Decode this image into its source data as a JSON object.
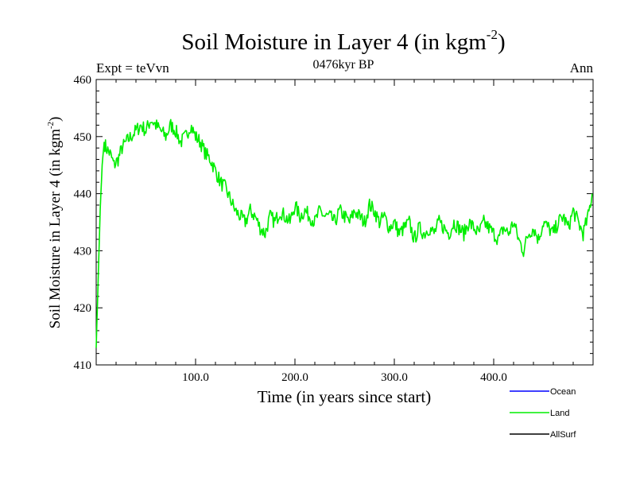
{
  "chart_data": {
    "type": "line",
    "title": "Soil Moisture in Layer 4 (in kgm",
    "title_superscript": "-2",
    "title_close": ")",
    "subtitle_left": "Expt = teVvn",
    "subtitle_center": "0476kyr BP",
    "subtitle_right": "Ann",
    "xlabel": "Time (in years since start)",
    "ylabel": "Soil Moisture in Layer 4 (in kgm",
    "ylabel_superscript": "-2",
    "ylabel_close": ")",
    "xlim": [
      0,
      500
    ],
    "ylim": [
      410,
      460
    ],
    "x_ticks": [
      100,
      200,
      300,
      400
    ],
    "x_tick_labels": [
      "100.0",
      "200.0",
      "300.0",
      "400.0"
    ],
    "y_ticks": [
      410,
      420,
      430,
      440,
      450,
      460
    ],
    "y_tick_labels": [
      "410",
      "420",
      "430",
      "440",
      "450",
      "460"
    ],
    "grid": false,
    "legend_position": "bottom-right",
    "series": [
      {
        "name": "Land",
        "color": "#00ee00",
        "x": [
          0,
          2,
          4,
          6,
          8,
          10,
          14,
          18,
          22,
          26,
          30,
          35,
          40,
          45,
          50,
          55,
          60,
          65,
          70,
          75,
          80,
          85,
          90,
          95,
          100,
          105,
          110,
          115,
          120,
          125,
          130,
          135,
          140,
          145,
          150,
          155,
          160,
          165,
          170,
          175,
          180,
          185,
          190,
          195,
          200,
          205,
          210,
          215,
          220,
          225,
          230,
          235,
          240,
          245,
          250,
          255,
          260,
          265,
          270,
          275,
          280,
          285,
          290,
          295,
          300,
          305,
          310,
          315,
          320,
          325,
          330,
          335,
          340,
          345,
          350,
          355,
          360,
          365,
          370,
          375,
          380,
          385,
          390,
          395,
          400,
          405,
          410,
          415,
          420,
          425,
          430,
          435,
          440,
          445,
          450,
          455,
          460,
          465,
          470,
          475,
          480,
          485,
          490,
          495,
          499
        ],
        "values": [
          413,
          425,
          437,
          445,
          449,
          448,
          447,
          445,
          446,
          448,
          449,
          450,
          451,
          452,
          451,
          453,
          452,
          451,
          450,
          452,
          451,
          449,
          450,
          452,
          450,
          449,
          447,
          446,
          444,
          442,
          441,
          439,
          437,
          436,
          435,
          437,
          436,
          434,
          433,
          436,
          435,
          437,
          436,
          435,
          438,
          436,
          437,
          436,
          435,
          437,
          436,
          436,
          435,
          437,
          436,
          435,
          437,
          436,
          435,
          438,
          437,
          435,
          436,
          434,
          435,
          433,
          434,
          435,
          432,
          434,
          433,
          434,
          433,
          435,
          434,
          433,
          435,
          434,
          433,
          435,
          434,
          433,
          435,
          434,
          433,
          432,
          434,
          433,
          435,
          432,
          430,
          433,
          434,
          432,
          435,
          434,
          433,
          435,
          436,
          434,
          437,
          435,
          433,
          436,
          440
        ]
      }
    ]
  },
  "legend": {
    "items": [
      {
        "label": "Ocean",
        "color": "#0000ff"
      },
      {
        "label": "Land",
        "color": "#00ee00"
      },
      {
        "label": "AllSurf",
        "color": "#000000"
      }
    ]
  }
}
